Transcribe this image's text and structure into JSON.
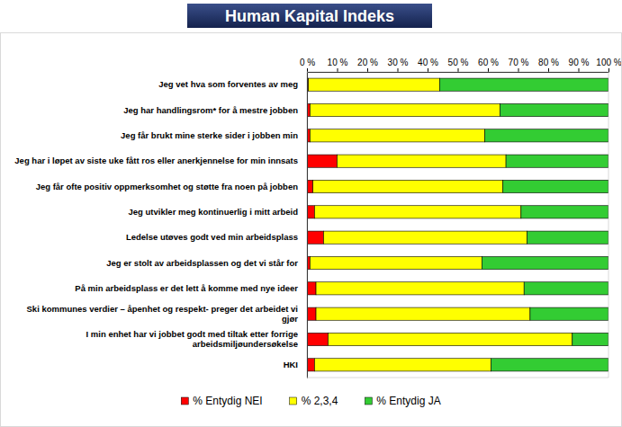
{
  "chart_data": {
    "type": "bar",
    "title": "Human Kapital Indeks",
    "orientation": "horizontal",
    "stacked": true,
    "grid": false,
    "legend": "bottom",
    "categories": [
      "Jeg vet hva som forventes av meg",
      "Jeg har handlingsrom* for å mestre jobben",
      "Jeg får brukt mine sterke sider i jobben min",
      "Jeg har i løpet av siste uke fått ros eller anerkjennelse for min innsats",
      "Jeg får ofte positiv oppmerksomhet og støtte fra noen på jobben",
      "Jeg utvikler meg kontinuerlig i mitt arbeid",
      "Ledelse utøves godt ved min arbeidsplass",
      "Jeg er stolt av arbeidsplassen og det vi står for",
      "På min arbeidsplass er det lett å komme med nye ideer",
      "Ski kommunes verdier – åpenhet og respekt- preger det arbeidet vi gjør",
      "I min enhet har vi jobbet godt med tiltak etter forrige arbeidsmiljøundersøkelse",
      "HKI"
    ],
    "series": [
      {
        "name": "% Entydig NEI",
        "color": "#ff0000",
        "values": [
          0.5,
          1,
          1,
          10,
          2,
          2.5,
          5.5,
          1,
          3,
          3,
          7,
          2.5
        ]
      },
      {
        "name": "% 2,3,4",
        "color": "#ffff00",
        "values": [
          43.5,
          63,
          58,
          56,
          63,
          68.5,
          67.5,
          57,
          69,
          71,
          81,
          58.5
        ]
      },
      {
        "name": "% Entydig JA",
        "color": "#33cc33",
        "values": [
          56,
          36,
          41,
          34,
          35,
          29,
          27,
          42,
          28,
          26,
          12,
          39
        ]
      }
    ],
    "xlim": [
      0,
      100
    ],
    "xticks": [
      {
        "value": 0,
        "label": "0 %"
      },
      {
        "value": 10,
        "label": "10 %"
      },
      {
        "value": 20,
        "label": "20 %"
      },
      {
        "value": 30,
        "label": "30 %"
      },
      {
        "value": 40,
        "label": "40 %"
      },
      {
        "value": 50,
        "label": "50 %"
      },
      {
        "value": 60,
        "label": "60 %"
      },
      {
        "value": 70,
        "label": "70 %"
      },
      {
        "value": 80,
        "label": "80 %"
      },
      {
        "value": 90,
        "label": "90 %"
      },
      {
        "value": 100,
        "label": "100 %"
      }
    ]
  }
}
